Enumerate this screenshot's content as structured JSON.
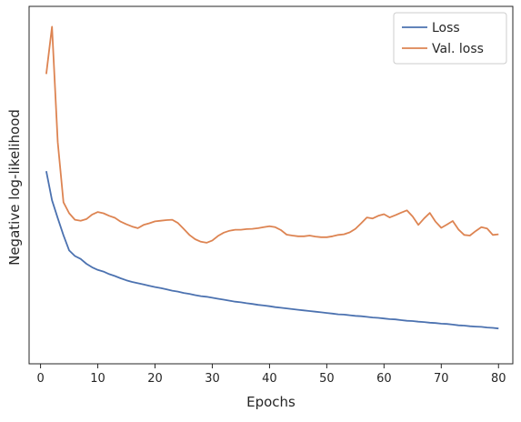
{
  "chart_data": {
    "type": "line",
    "title": "",
    "xlabel": "Epochs",
    "ylabel": "Negative log-likelihood",
    "xlim": [
      -2,
      82.5
    ],
    "ylim": [
      0,
      100
    ],
    "y_tick_labels_shown": false,
    "grid": false,
    "legend_position": "top-right",
    "x_ticks": [
      0,
      10,
      20,
      30,
      40,
      50,
      60,
      70,
      80
    ],
    "x_tick_labels": [
      "0",
      "10",
      "20",
      "30",
      "40",
      "50",
      "60",
      "70",
      "80"
    ],
    "x": [
      1,
      2,
      3,
      4,
      5,
      6,
      7,
      8,
      9,
      10,
      11,
      12,
      13,
      14,
      15,
      16,
      17,
      18,
      19,
      20,
      21,
      22,
      23,
      24,
      25,
      26,
      27,
      28,
      29,
      30,
      31,
      32,
      33,
      34,
      35,
      36,
      37,
      38,
      39,
      40,
      41,
      42,
      43,
      44,
      45,
      46,
      47,
      48,
      49,
      50,
      51,
      52,
      53,
      54,
      55,
      56,
      57,
      58,
      59,
      60,
      61,
      62,
      63,
      64,
      65,
      66,
      67,
      68,
      69,
      70,
      71,
      72,
      73,
      74,
      75,
      76,
      77,
      78,
      79,
      80
    ],
    "series": [
      {
        "name": "Loss",
        "color": "#4c72b0",
        "values": [
          55.0,
          46.0,
          40.5,
          35.2,
          30.5,
          28.8,
          27.9,
          26.4,
          25.3,
          24.5,
          24.0,
          23.2,
          22.6,
          21.9,
          21.3,
          20.8,
          20.4,
          20.0,
          19.6,
          19.2,
          18.9,
          18.5,
          18.1,
          17.8,
          17.4,
          17.1,
          16.7,
          16.4,
          16.2,
          15.9,
          15.6,
          15.3,
          15.0,
          14.7,
          14.5,
          14.2,
          14.0,
          13.7,
          13.5,
          13.3,
          13.0,
          12.8,
          12.6,
          12.4,
          12.2,
          12.0,
          11.8,
          11.6,
          11.4,
          11.2,
          11.0,
          10.8,
          10.7,
          10.5,
          10.3,
          10.2,
          10.0,
          9.8,
          9.7,
          9.5,
          9.3,
          9.2,
          9.0,
          8.8,
          8.7,
          8.5,
          8.4,
          8.2,
          8.1,
          7.9,
          7.8,
          7.6,
          7.4,
          7.3,
          7.1,
          7.0,
          6.9,
          6.7,
          6.6,
          6.4
        ]
      },
      {
        "name": "Val. loss",
        "color": "#dd8452",
        "values": [
          85.0,
          99.6,
          64.0,
          45.4,
          42.0,
          40.0,
          39.7,
          40.2,
          41.6,
          42.4,
          42.0,
          41.2,
          40.6,
          39.4,
          38.6,
          37.9,
          37.4,
          38.4,
          38.9,
          39.5,
          39.7,
          39.9,
          40.0,
          39.0,
          37.2,
          35.3,
          34.0,
          33.2,
          32.9,
          33.6,
          35.0,
          36.0,
          36.6,
          36.9,
          36.9,
          37.1,
          37.2,
          37.4,
          37.7,
          38.0,
          37.7,
          36.8,
          35.4,
          35.1,
          34.9,
          34.9,
          35.1,
          34.8,
          34.6,
          34.6,
          34.9,
          35.3,
          35.5,
          36.1,
          37.2,
          38.9,
          40.7,
          40.4,
          41.2,
          41.7,
          40.7,
          41.4,
          42.2,
          42.9,
          41.0,
          38.4,
          40.4,
          42.1,
          39.4,
          37.5,
          38.5,
          39.6,
          37.0,
          35.3,
          35.1,
          36.5,
          37.7,
          37.3,
          35.3,
          35.5
        ]
      }
    ]
  }
}
